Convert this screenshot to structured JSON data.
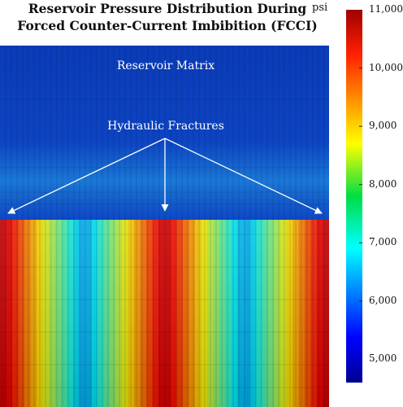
{
  "title": {
    "line1": "Reservoir Pressure Distribution During",
    "line2": "Forced Counter-Current Imbibition (FCCI)"
  },
  "unit": "psi",
  "annotations": {
    "matrix": "Reservoir Matrix",
    "fractures": "Hydraulic Fractures"
  },
  "colorbar": {
    "ticks": [
      "11,000",
      "10,000",
      "9,000",
      "8,000",
      "7,000",
      "6,000",
      "5,000"
    ],
    "min": 4600,
    "max": 11000,
    "colormap": "jet"
  },
  "colors": {
    "matrix_dark": "#0b3bb8",
    "matrix_light": "#1f7fd8",
    "fracture_high": "#d21f0c",
    "fracture_low": "#1eb9d8",
    "arrow": "#ffffff"
  },
  "chart_data": {
    "type": "heatmap",
    "unit": "psi",
    "zlim": [
      4600,
      11000
    ],
    "fracture_pressure_max": 11000,
    "matrix_pressure_min": 5000
  }
}
